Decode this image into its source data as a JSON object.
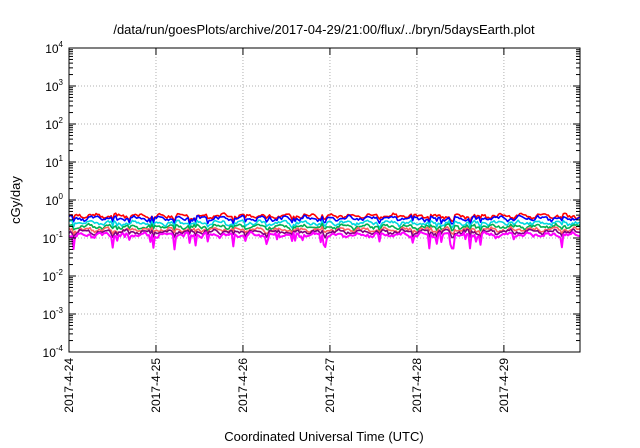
{
  "chart_data": {
    "type": "line",
    "title": "/data/run/goesPlots/archive/2017-04-29/21:00/flux/../bryn/5daysEarth.plot",
    "xlabel": "Coordinated Universal Time (UTC)",
    "ylabel": "cGy/day",
    "yscale": "log",
    "grid": true,
    "ylim": [
      0.0001,
      10000
    ],
    "y_ticks": [
      {
        "base": "10",
        "exp": "-4"
      },
      {
        "base": "10",
        "exp": "-3"
      },
      {
        "base": "10",
        "exp": "-2"
      },
      {
        "base": "10",
        "exp": "-1"
      },
      {
        "base": "10",
        "exp": "0"
      },
      {
        "base": "10",
        "exp": "1"
      },
      {
        "base": "10",
        "exp": "2"
      },
      {
        "base": "10",
        "exp": "3"
      },
      {
        "base": "10",
        "exp": "4"
      }
    ],
    "xlim": [
      "2017-04-24T00:00",
      "2017-04-29T21:00"
    ],
    "x_ticks": [
      "2017-4-24",
      "2017-4-25",
      "2017-4-26",
      "2017-4-27",
      "2017-4-28",
      "2017-4-29"
    ],
    "series": [
      {
        "color": "#ff0000",
        "base": 0.38,
        "dip_scale": 0.25
      },
      {
        "color": "#0000ff",
        "base": 0.33,
        "dip_scale": 0.3
      },
      {
        "color": "#00d8e0",
        "base": 0.25,
        "dip_scale": 0.25
      },
      {
        "color": "#00b050",
        "base": 0.2,
        "dip_scale": 0.2
      },
      {
        "color": "#ff6060",
        "base": 0.165,
        "dip_scale": 0.2
      },
      {
        "color": "#800080",
        "base": 0.145,
        "dip_scale": 0.25
      },
      {
        "color": "#ff00ff",
        "base": 0.12,
        "dip_scale": 0.55
      }
    ]
  }
}
